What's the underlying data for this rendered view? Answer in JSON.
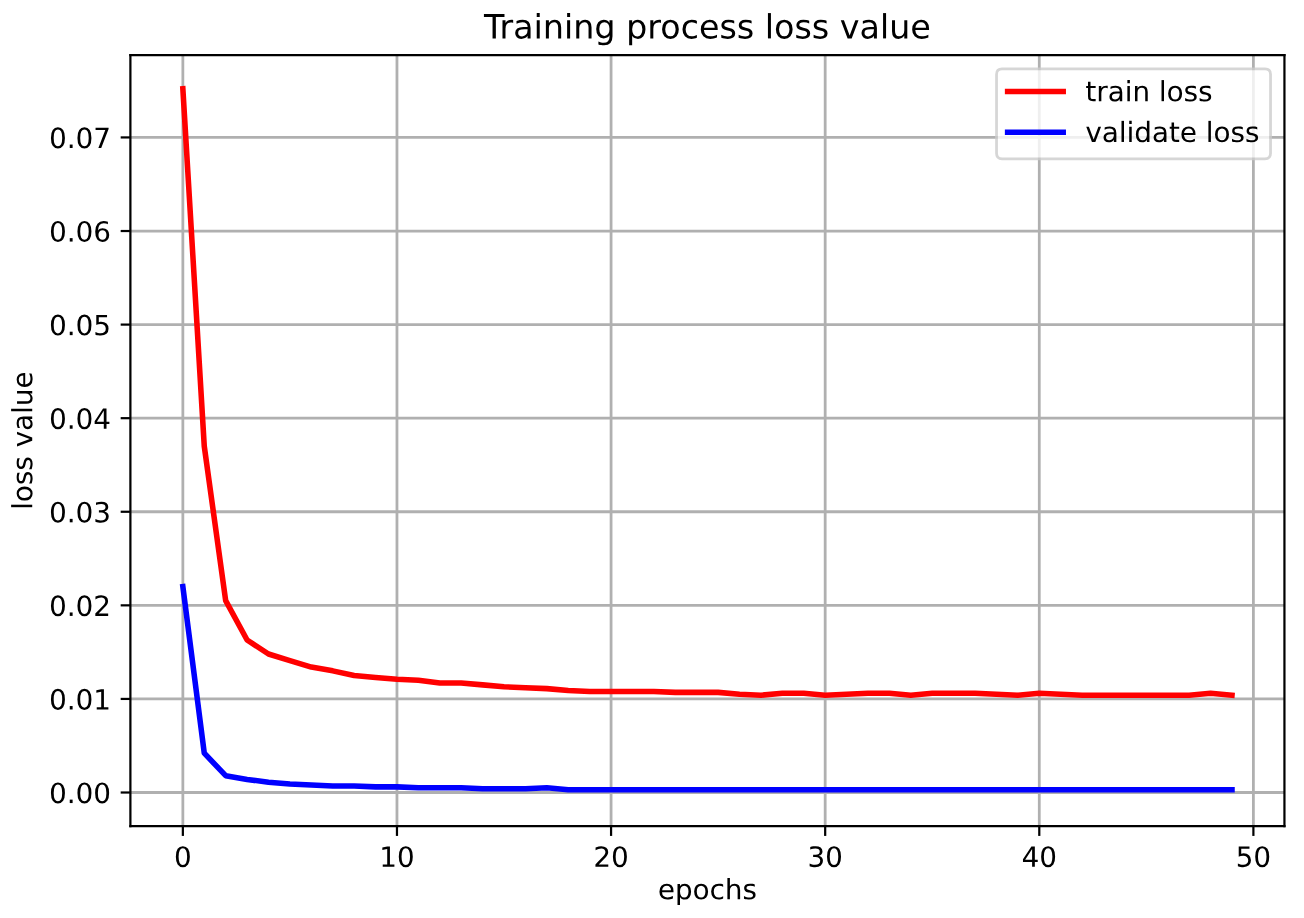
{
  "chart_data": {
    "type": "line",
    "title": "Training process loss value",
    "xlabel": "epochs",
    "ylabel": "loss value",
    "x": [
      0,
      1,
      2,
      3,
      4,
      5,
      6,
      7,
      8,
      9,
      10,
      11,
      12,
      13,
      14,
      15,
      16,
      17,
      18,
      19,
      20,
      21,
      22,
      23,
      24,
      25,
      26,
      27,
      28,
      29,
      30,
      31,
      32,
      33,
      34,
      35,
      36,
      37,
      38,
      39,
      40,
      41,
      42,
      43,
      44,
      45,
      46,
      47,
      48,
      49
    ],
    "series": [
      {
        "name": "train loss",
        "color": "#ff0000",
        "values": [
          0.0752,
          0.037,
          0.0205,
          0.0163,
          0.0148,
          0.0141,
          0.0134,
          0.013,
          0.0125,
          0.0123,
          0.0121,
          0.012,
          0.0117,
          0.0117,
          0.0115,
          0.0113,
          0.0112,
          0.0111,
          0.0109,
          0.0108,
          0.0108,
          0.0108,
          0.0108,
          0.0107,
          0.0107,
          0.0107,
          0.0105,
          0.0104,
          0.0106,
          0.0106,
          0.0104,
          0.0105,
          0.0106,
          0.0106,
          0.0104,
          0.0106,
          0.0106,
          0.0106,
          0.0105,
          0.0104,
          0.0106,
          0.0105,
          0.0104,
          0.0104,
          0.0104,
          0.0104,
          0.0104,
          0.0104,
          0.0106,
          0.0104
        ]
      },
      {
        "name": "validate loss",
        "color": "#0000ff",
        "values": [
          0.022,
          0.0042,
          0.0018,
          0.0014,
          0.0011,
          0.0009,
          0.0008,
          0.0007,
          0.0007,
          0.0006,
          0.0006,
          0.0005,
          0.0005,
          0.0005,
          0.0004,
          0.0004,
          0.0004,
          0.0005,
          0.0003,
          0.0003,
          0.0003,
          0.0003,
          0.0003,
          0.0003,
          0.0003,
          0.0003,
          0.0003,
          0.0003,
          0.0003,
          0.0003,
          0.0003,
          0.0003,
          0.0003,
          0.0003,
          0.0003,
          0.0003,
          0.0003,
          0.0003,
          0.0003,
          0.0003,
          0.0003,
          0.0003,
          0.0003,
          0.0003,
          0.0003,
          0.0003,
          0.0003,
          0.0003,
          0.0003,
          0.0003
        ]
      }
    ],
    "xlim": [
      -2.45,
      51.45
    ],
    "ylim": [
      -0.0036,
      0.0788
    ],
    "xticks": [
      0,
      10,
      20,
      30,
      40,
      50
    ],
    "yticks": [
      {
        "value": 0,
        "label": "0.00"
      },
      {
        "value": 0.01,
        "label": "0.01"
      },
      {
        "value": 0.02,
        "label": "0.02"
      },
      {
        "value": 0.03,
        "label": "0.03"
      },
      {
        "value": 0.04,
        "label": "0.04"
      },
      {
        "value": 0.05,
        "label": "0.05"
      },
      {
        "value": 0.06,
        "label": "0.06"
      },
      {
        "value": 0.07,
        "label": "0.07"
      }
    ],
    "grid": true,
    "legend": "top right"
  }
}
